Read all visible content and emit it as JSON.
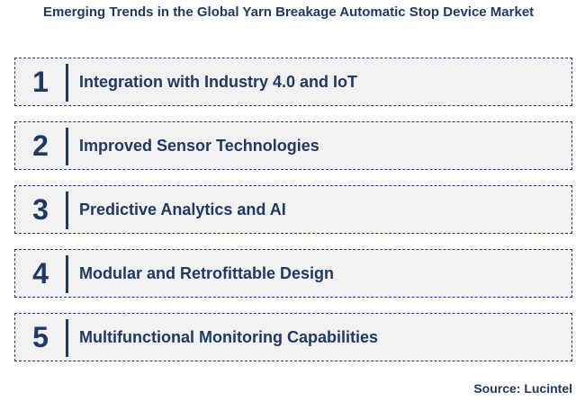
{
  "title": "Emerging Trends in the Global Yarn Breakage Automatic Stop Device Market",
  "trends": [
    {
      "number": "1",
      "label": "Integration with Industry 4.0 and IoT"
    },
    {
      "number": "2",
      "label": "Improved Sensor Technologies"
    },
    {
      "number": "3",
      "label": "Predictive Analytics and AI"
    },
    {
      "number": "4",
      "label": "Modular and Retrofittable Design"
    },
    {
      "number": "5",
      "label": "Multifunctional Monitoring Capabilities"
    }
  ],
  "source": "Source: Lucintel",
  "colors": {
    "accent": "#1f3864",
    "box_background": "#f2f2f2"
  }
}
